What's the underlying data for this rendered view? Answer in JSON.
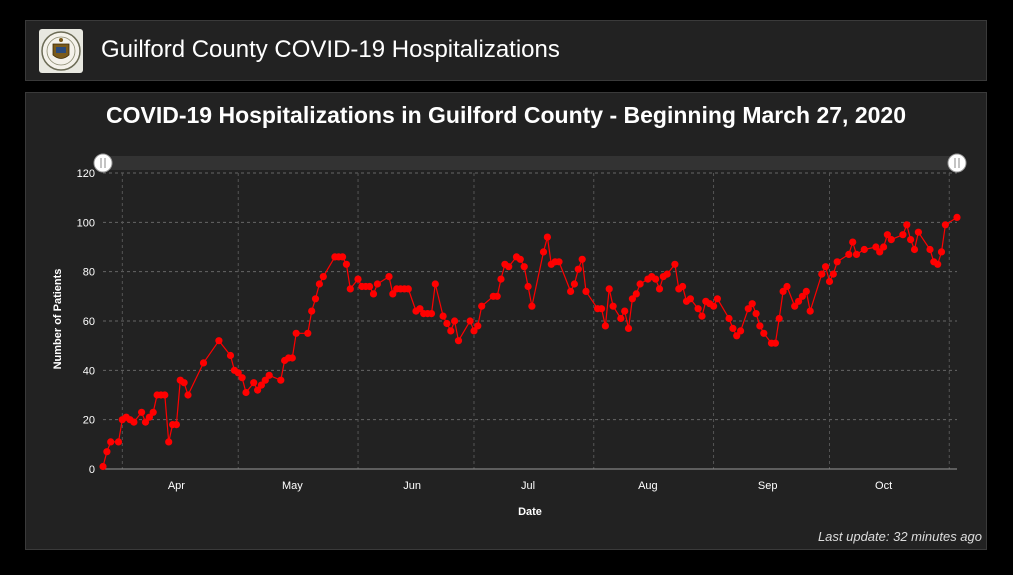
{
  "header": {
    "title": "Guilford County COVID-19 Hospitalizations"
  },
  "footer": {
    "last_update": "Last update: 32 minutes ago"
  },
  "colors": {
    "series": "#ff0000",
    "background": "#222222"
  },
  "chart_data": {
    "type": "line",
    "title": "COVID-19 Hospitalizations in Guilford County - Beginning March 27, 2020",
    "xlabel": "Date",
    "ylabel": "Number of Patients",
    "ylim": [
      0,
      120
    ],
    "yticks": [
      0,
      20,
      40,
      60,
      80,
      100,
      120
    ],
    "xlim": [
      "2020-03-27",
      "2020-10-24"
    ],
    "xtick_labels": [
      {
        "date": "2020-04-15",
        "label": "Apr"
      },
      {
        "date": "2020-05-15",
        "label": "May"
      },
      {
        "date": "2020-06-15",
        "label": "Jun"
      },
      {
        "date": "2020-07-15",
        "label": "Jul"
      },
      {
        "date": "2020-08-15",
        "label": "Aug"
      },
      {
        "date": "2020-09-15",
        "label": "Sep"
      },
      {
        "date": "2020-10-15",
        "label": "Oct"
      }
    ],
    "grid": true,
    "series": [
      {
        "values": [
          [
            "2020-03-27",
            1
          ],
          [
            "2020-03-28",
            7
          ],
          [
            "2020-03-29",
            11
          ],
          [
            "2020-03-31",
            11
          ],
          [
            "2020-04-01",
            20
          ],
          [
            "2020-04-02",
            21
          ],
          [
            "2020-04-03",
            20
          ],
          [
            "2020-04-04",
            19
          ],
          [
            "2020-04-06",
            23
          ],
          [
            "2020-04-07",
            19
          ],
          [
            "2020-04-08",
            21
          ],
          [
            "2020-04-09",
            23
          ],
          [
            "2020-04-10",
            30
          ],
          [
            "2020-04-11",
            30
          ],
          [
            "2020-04-12",
            30
          ],
          [
            "2020-04-13",
            11
          ],
          [
            "2020-04-14",
            18
          ],
          [
            "2020-04-15",
            18
          ],
          [
            "2020-04-16",
            36
          ],
          [
            "2020-04-17",
            35
          ],
          [
            "2020-04-18",
            30
          ],
          [
            "2020-04-22",
            43
          ],
          [
            "2020-04-26",
            52
          ],
          [
            "2020-04-29",
            46
          ],
          [
            "2020-04-30",
            40
          ],
          [
            "2020-05-01",
            39
          ],
          [
            "2020-05-02",
            37
          ],
          [
            "2020-05-03",
            31
          ],
          [
            "2020-05-05",
            35
          ],
          [
            "2020-05-06",
            32
          ],
          [
            "2020-05-07",
            34
          ],
          [
            "2020-05-08",
            36
          ],
          [
            "2020-05-09",
            38
          ],
          [
            "2020-05-12",
            36
          ],
          [
            "2020-05-13",
            44
          ],
          [
            "2020-05-14",
            45
          ],
          [
            "2020-05-15",
            45
          ],
          [
            "2020-05-16",
            55
          ],
          [
            "2020-05-19",
            55
          ],
          [
            "2020-05-20",
            64
          ],
          [
            "2020-05-21",
            69
          ],
          [
            "2020-05-22",
            75
          ],
          [
            "2020-05-23",
            78
          ],
          [
            "2020-05-26",
            86
          ],
          [
            "2020-05-27",
            86
          ],
          [
            "2020-05-28",
            86
          ],
          [
            "2020-05-29",
            83
          ],
          [
            "2020-05-30",
            73
          ],
          [
            "2020-06-01",
            77
          ],
          [
            "2020-06-02",
            74
          ],
          [
            "2020-06-03",
            74
          ],
          [
            "2020-06-04",
            74
          ],
          [
            "2020-06-05",
            71
          ],
          [
            "2020-06-06",
            75
          ],
          [
            "2020-06-09",
            78
          ],
          [
            "2020-06-10",
            71
          ],
          [
            "2020-06-11",
            73
          ],
          [
            "2020-06-12",
            73
          ],
          [
            "2020-06-13",
            73
          ],
          [
            "2020-06-14",
            73
          ],
          [
            "2020-06-16",
            64
          ],
          [
            "2020-06-17",
            65
          ],
          [
            "2020-06-18",
            63
          ],
          [
            "2020-06-19",
            63
          ],
          [
            "2020-06-20",
            63
          ],
          [
            "2020-06-21",
            75
          ],
          [
            "2020-06-23",
            62
          ],
          [
            "2020-06-24",
            59
          ],
          [
            "2020-06-25",
            56
          ],
          [
            "2020-06-26",
            60
          ],
          [
            "2020-06-27",
            52
          ],
          [
            "2020-06-30",
            60
          ],
          [
            "2020-07-01",
            56
          ],
          [
            "2020-07-02",
            58
          ],
          [
            "2020-07-03",
            66
          ],
          [
            "2020-07-06",
            70
          ],
          [
            "2020-07-07",
            70
          ],
          [
            "2020-07-08",
            77
          ],
          [
            "2020-07-09",
            83
          ],
          [
            "2020-07-10",
            82
          ],
          [
            "2020-07-12",
            86
          ],
          [
            "2020-07-13",
            85
          ],
          [
            "2020-07-14",
            82
          ],
          [
            "2020-07-15",
            74
          ],
          [
            "2020-07-16",
            66
          ],
          [
            "2020-07-19",
            88
          ],
          [
            "2020-07-20",
            94
          ],
          [
            "2020-07-21",
            83
          ],
          [
            "2020-07-22",
            84
          ],
          [
            "2020-07-23",
            84
          ],
          [
            "2020-07-26",
            72
          ],
          [
            "2020-07-27",
            75
          ],
          [
            "2020-07-28",
            81
          ],
          [
            "2020-07-29",
            85
          ],
          [
            "2020-07-30",
            72
          ],
          [
            "2020-08-02",
            65
          ],
          [
            "2020-08-03",
            65
          ],
          [
            "2020-08-04",
            58
          ],
          [
            "2020-08-05",
            73
          ],
          [
            "2020-08-06",
            66
          ],
          [
            "2020-08-08",
            61
          ],
          [
            "2020-08-09",
            64
          ],
          [
            "2020-08-10",
            57
          ],
          [
            "2020-08-11",
            69
          ],
          [
            "2020-08-12",
            71
          ],
          [
            "2020-08-13",
            75
          ],
          [
            "2020-08-15",
            77
          ],
          [
            "2020-08-16",
            78
          ],
          [
            "2020-08-17",
            77
          ],
          [
            "2020-08-18",
            73
          ],
          [
            "2020-08-19",
            78
          ],
          [
            "2020-08-20",
            79
          ],
          [
            "2020-08-22",
            83
          ],
          [
            "2020-08-23",
            73
          ],
          [
            "2020-08-24",
            74
          ],
          [
            "2020-08-25",
            68
          ],
          [
            "2020-08-26",
            69
          ],
          [
            "2020-08-28",
            65
          ],
          [
            "2020-08-29",
            62
          ],
          [
            "2020-08-30",
            68
          ],
          [
            "2020-08-31",
            67
          ],
          [
            "2020-09-01",
            66
          ],
          [
            "2020-09-02",
            69
          ],
          [
            "2020-09-05",
            61
          ],
          [
            "2020-09-06",
            57
          ],
          [
            "2020-09-07",
            54
          ],
          [
            "2020-09-08",
            56
          ],
          [
            "2020-09-10",
            65
          ],
          [
            "2020-09-11",
            67
          ],
          [
            "2020-09-12",
            63
          ],
          [
            "2020-09-13",
            58
          ],
          [
            "2020-09-14",
            55
          ],
          [
            "2020-09-16",
            51
          ],
          [
            "2020-09-17",
            51
          ],
          [
            "2020-09-18",
            61
          ],
          [
            "2020-09-19",
            72
          ],
          [
            "2020-09-20",
            74
          ],
          [
            "2020-09-22",
            66
          ],
          [
            "2020-09-23",
            68
          ],
          [
            "2020-09-24",
            70
          ],
          [
            "2020-09-25",
            72
          ],
          [
            "2020-09-26",
            64
          ],
          [
            "2020-09-29",
            79
          ],
          [
            "2020-09-30",
            82
          ],
          [
            "2020-10-01",
            76
          ],
          [
            "2020-10-02",
            79
          ],
          [
            "2020-10-03",
            84
          ],
          [
            "2020-10-06",
            87
          ],
          [
            "2020-10-07",
            92
          ],
          [
            "2020-10-08",
            87
          ],
          [
            "2020-10-10",
            89
          ],
          [
            "2020-10-13",
            90
          ],
          [
            "2020-10-14",
            88
          ],
          [
            "2020-10-15",
            90
          ],
          [
            "2020-10-16",
            95
          ],
          [
            "2020-10-17",
            93
          ],
          [
            "2020-10-20",
            95
          ],
          [
            "2020-10-21",
            99
          ],
          [
            "2020-10-22",
            93
          ],
          [
            "2020-10-23",
            89
          ],
          [
            "2020-10-24",
            96
          ],
          [
            "2020-10-27",
            89
          ],
          [
            "2020-10-28",
            84
          ],
          [
            "2020-10-29",
            83
          ],
          [
            "2020-10-30",
            88
          ],
          [
            "2020-10-31",
            99
          ],
          [
            "2020-11-03",
            102
          ]
        ]
      }
    ]
  }
}
